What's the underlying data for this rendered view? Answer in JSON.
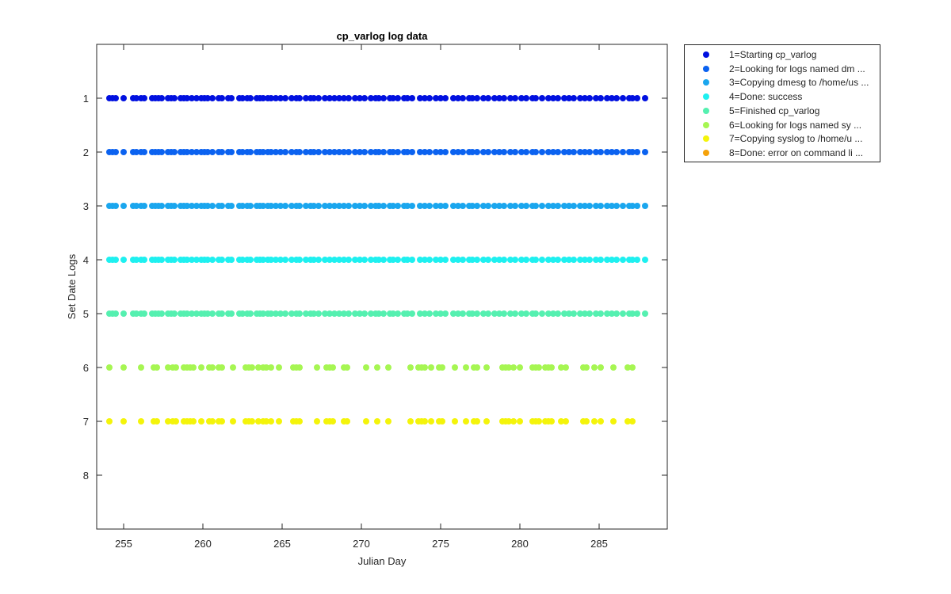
{
  "chart_data": {
    "type": "scatter",
    "title": "cp_varlog log data",
    "xlabel": "Julian Day",
    "ylabel": "Set Date Logs",
    "xlim": [
      253.3,
      289.3
    ],
    "ylim": [
      0,
      9
    ],
    "y_reversed": true,
    "xticks": [
      255,
      260,
      265,
      270,
      275,
      280,
      285
    ],
    "xtick_labels": [
      "255",
      "260",
      "265",
      "270",
      "275",
      "280",
      "285"
    ],
    "yticks": [
      1,
      2,
      3,
      4,
      5,
      6,
      7,
      8
    ],
    "ytick_labels": [
      "1",
      "2",
      "3",
      "4",
      "5",
      "6",
      "7",
      "8"
    ],
    "grid": false,
    "legend_position": "outside-top-right",
    "days_full": [
      254.1,
      254.3,
      254.5,
      255.0,
      255.6,
      255.8,
      256.1,
      256.3,
      256.8,
      257.0,
      257.2,
      257.4,
      257.8,
      258.0,
      258.2,
      258.6,
      258.8,
      259.0,
      259.3,
      259.6,
      259.9,
      260.1,
      260.3,
      260.6,
      261.0,
      261.2,
      261.6,
      261.8,
      262.3,
      262.5,
      262.8,
      263.0,
      263.4,
      263.6,
      263.8,
      264.1,
      264.3,
      264.6,
      264.9,
      265.2,
      265.6,
      265.9,
      266.1,
      266.5,
      266.8,
      267.0,
      267.3,
      267.7,
      268.0,
      268.3,
      268.6,
      268.9,
      269.2,
      269.6,
      269.9,
      270.2,
      270.6,
      270.9,
      271.1,
      271.4,
      271.8,
      272.0,
      272.3,
      272.7,
      272.9,
      273.2,
      273.7,
      274.0,
      274.3,
      274.7,
      275.0,
      275.3,
      275.8,
      276.1,
      276.4,
      276.8,
      277.0,
      277.3,
      277.7,
      278.0,
      278.4,
      278.7,
      279.0,
      279.4,
      279.7,
      280.1,
      280.4,
      280.8,
      281.0,
      281.4,
      281.8,
      282.1,
      282.4,
      282.8,
      283.1,
      283.4,
      283.8,
      284.1,
      284.4,
      284.8,
      285.1,
      285.5,
      285.8,
      286.1,
      286.5,
      286.9,
      287.1,
      287.4,
      287.9
    ],
    "days_partial": [
      254.1,
      255.0,
      256.1,
      256.9,
      257.1,
      257.8,
      258.1,
      258.3,
      258.8,
      259.0,
      259.2,
      259.4,
      259.9,
      260.4,
      260.6,
      261.0,
      261.2,
      261.9,
      262.7,
      262.9,
      263.1,
      263.5,
      263.8,
      264.0,
      264.3,
      264.8,
      265.7,
      265.9,
      266.1,
      267.2,
      267.8,
      268.0,
      268.2,
      268.9,
      269.1,
      270.3,
      271.0,
      271.7,
      273.1,
      273.6,
      273.8,
      274.0,
      274.4,
      274.9,
      275.1,
      275.9,
      276.6,
      277.1,
      277.3,
      277.9,
      278.9,
      279.1,
      279.3,
      279.6,
      280.0,
      280.8,
      281.0,
      281.2,
      281.6,
      281.8,
      282.0,
      282.6,
      282.9,
      284.0,
      284.2,
      284.7,
      285.1,
      285.9,
      286.8,
      287.1
    ]
  },
  "legend": [
    {
      "label": "1=Starting cp_varlog",
      "color": "#0010e0",
      "row": 1,
      "days": "full"
    },
    {
      "label": "2=Looking for logs named dm ...",
      "color": "#0b62f0",
      "row": 2,
      "days": "full"
    },
    {
      "label": "3=Copying dmesg to /home/us ...",
      "color": "#1aa6ee",
      "row": 3,
      "days": "full"
    },
    {
      "label": "4=Done: success",
      "color": "#1ef0f0",
      "row": 4,
      "days": "full"
    },
    {
      "label": "5=Finished cp_varlog",
      "color": "#55f0b0",
      "row": 5,
      "days": "full"
    },
    {
      "label": "6=Looking for logs named sy ...",
      "color": "#a6f652",
      "row": 6,
      "days": "partial"
    },
    {
      "label": "7=Copying syslog to /home/u ...",
      "color": "#f4f40a",
      "row": 7,
      "days": "partial"
    },
    {
      "label": "8=Done: error on command li ...",
      "color": "#f5a20a",
      "row": 8,
      "days": "none"
    }
  ],
  "colors": {
    "axis": "#262626",
    "background": "#ffffff"
  }
}
